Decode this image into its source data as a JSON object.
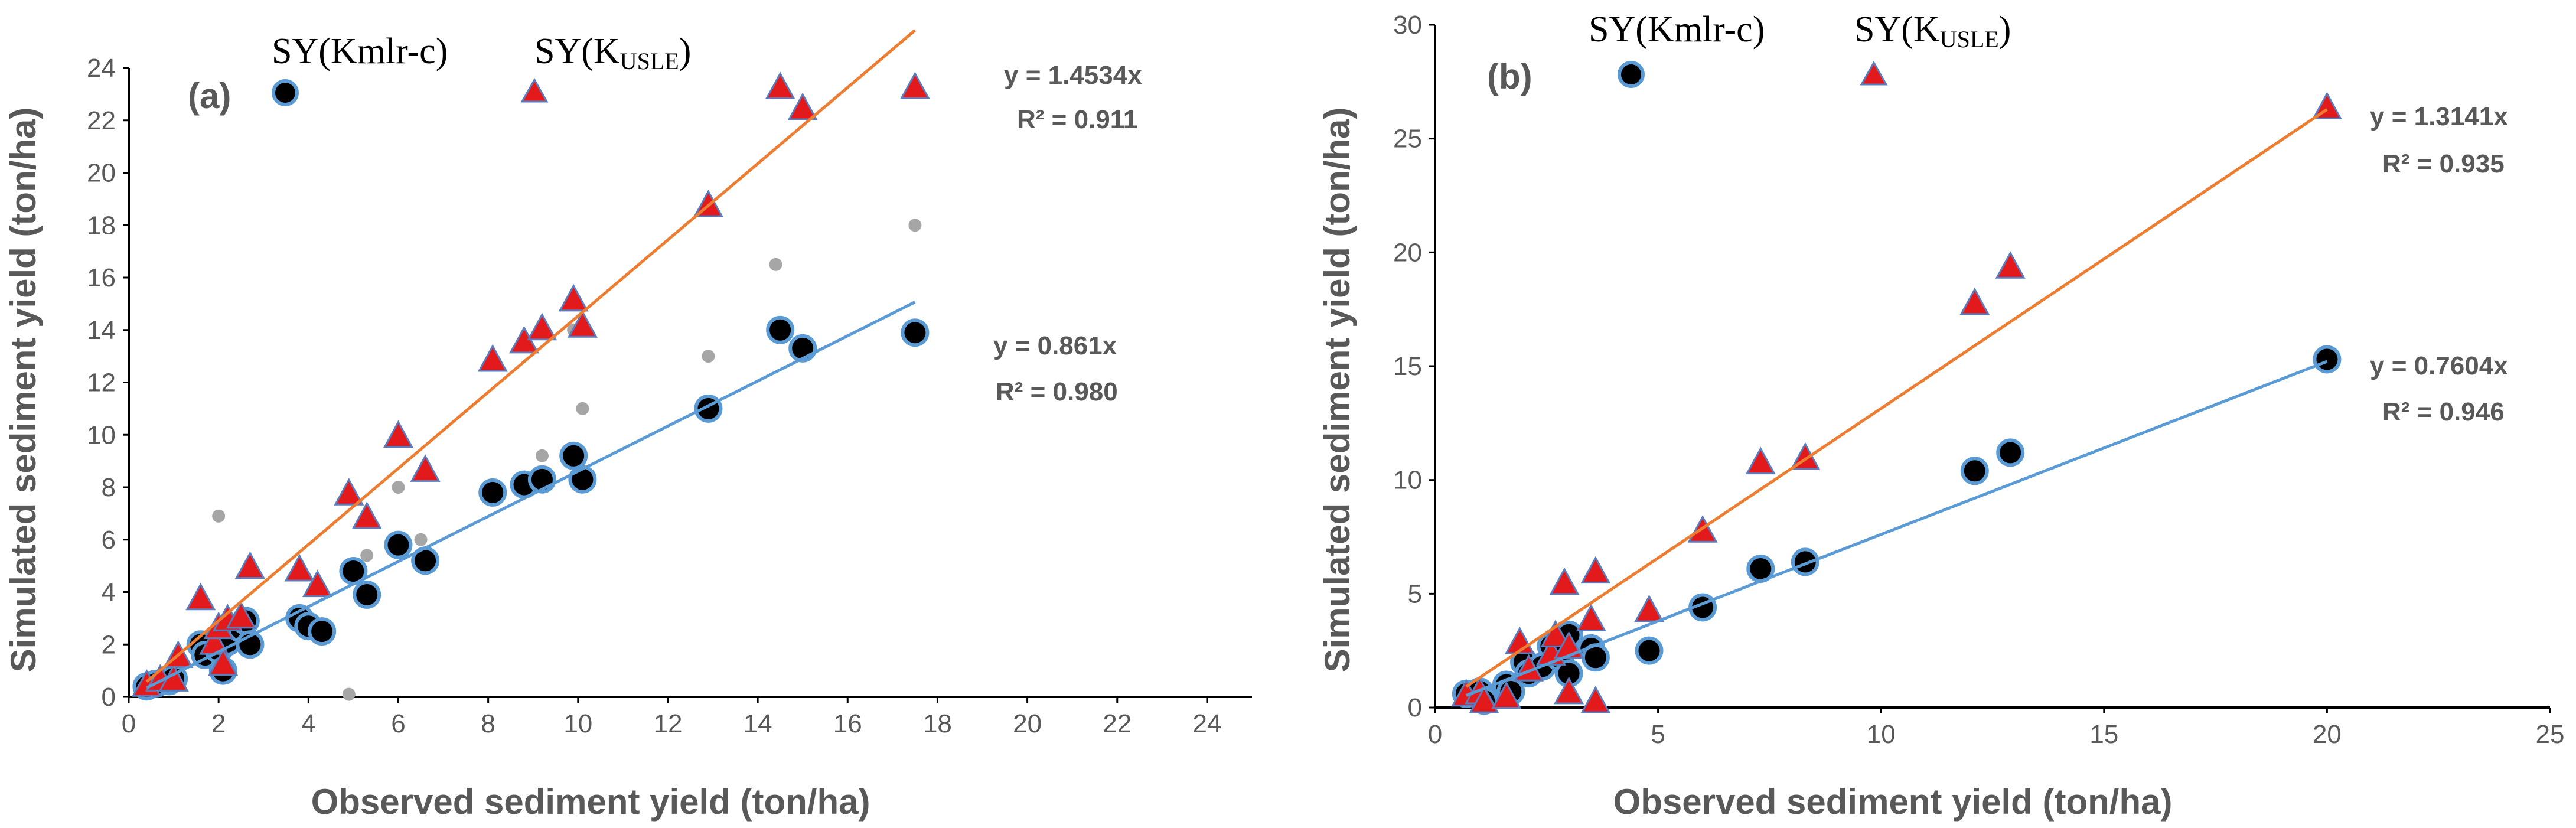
{
  "chart_data": [
    {
      "type": "scatter",
      "panel_label": "(a)",
      "xlabel": "Observed sediment yield (ton/ha)",
      "ylabel": "Simulated sediment yield (ton/ha)",
      "xlim": [
        0,
        25
      ],
      "ylim": [
        0,
        24
      ],
      "xticks": [
        0,
        2,
        4,
        6,
        8,
        10,
        12,
        14,
        16,
        18,
        20,
        22,
        24
      ],
      "yticks": [
        0,
        2,
        4,
        6,
        8,
        10,
        12,
        14,
        16,
        18,
        20,
        22,
        24
      ],
      "legend": {
        "kmlr_label": "SY(Kmlr-c)",
        "usle_main": "SY(K",
        "usle_sub": "USLE",
        "usle_close": ")"
      },
      "series": [
        {
          "name": "SY(Kmlr-c)",
          "marker": "circle",
          "fill": "#000000",
          "edge": "#5b9bd5",
          "trend_color": "#5b9bd5",
          "slope": 0.861,
          "trend_xmax": 17.5,
          "equation": "y = 0.861x",
          "r2": "R² = 0.980",
          "points": [
            [
              0.4,
              0.4
            ],
            [
              0.6,
              0.5
            ],
            [
              0.9,
              0.6
            ],
            [
              1.0,
              0.7
            ],
            [
              1.6,
              2.0
            ],
            [
              1.7,
              1.6
            ],
            [
              2.0,
              1.8
            ],
            [
              2.1,
              1.0
            ],
            [
              2.2,
              2.1
            ],
            [
              2.5,
              2.6
            ],
            [
              2.6,
              2.9
            ],
            [
              2.7,
              2.0
            ],
            [
              3.8,
              3.0
            ],
            [
              4.0,
              2.7
            ],
            [
              4.3,
              2.5
            ],
            [
              5.0,
              4.8
            ],
            [
              5.3,
              3.9
            ],
            [
              6.0,
              5.8
            ],
            [
              6.6,
              5.2
            ],
            [
              8.1,
              7.8
            ],
            [
              8.8,
              8.1
            ],
            [
              9.2,
              8.3
            ],
            [
              9.9,
              9.2
            ],
            [
              10.1,
              8.3
            ],
            [
              12.9,
              11.0
            ],
            [
              14.5,
              14.0
            ],
            [
              15.0,
              13.3
            ],
            [
              17.5,
              13.9
            ]
          ]
        },
        {
          "name": "SY(KUSLE)",
          "marker": "triangle",
          "fill": "#e31a1c",
          "edge": "#5b7dbd",
          "trend_color": "#ed7d31",
          "slope": 1.4534,
          "trend_xmax": 17.5,
          "equation": "y = 1.4534x",
          "r2": "R² = 0.911",
          "points": [
            [
              0.4,
              0.4
            ],
            [
              0.7,
              0.6
            ],
            [
              1.0,
              0.6
            ],
            [
              1.1,
              1.5
            ],
            [
              1.6,
              3.7
            ],
            [
              1.9,
              2.0
            ],
            [
              2.0,
              2.6
            ],
            [
              2.1,
              1.2
            ],
            [
              2.2,
              2.9
            ],
            [
              2.5,
              3.0
            ],
            [
              2.7,
              4.9
            ],
            [
              3.8,
              4.8
            ],
            [
              4.2,
              4.2
            ],
            [
              4.9,
              7.7
            ],
            [
              5.3,
              6.8
            ],
            [
              6.0,
              9.9
            ],
            [
              6.6,
              8.6
            ],
            [
              8.1,
              12.8
            ],
            [
              8.8,
              13.5
            ],
            [
              9.2,
              14.0
            ],
            [
              9.9,
              15.1
            ],
            [
              10.1,
              14.1
            ],
            [
              12.9,
              18.7
            ],
            [
              14.5,
              23.2
            ],
            [
              15.0,
              22.4
            ],
            [
              17.5,
              23.2
            ]
          ]
        },
        {
          "name": "secondary",
          "marker": "dot",
          "fill": "#a6a6a6",
          "points": [
            [
              2.0,
              6.9
            ],
            [
              4.9,
              0.1
            ],
            [
              6.0,
              8.0
            ],
            [
              6.5,
              6.0
            ],
            [
              8.1,
              8.0
            ],
            [
              9.2,
              9.2
            ],
            [
              10.1,
              11.0
            ],
            [
              12.9,
              13.0
            ],
            [
              14.4,
              16.5
            ],
            [
              17.5,
              18.0
            ],
            [
              3.7,
              3.0
            ],
            [
              5.3,
              5.4
            ],
            [
              9.9,
              14.0
            ]
          ]
        }
      ]
    },
    {
      "type": "scatter",
      "panel_label": "(b)",
      "xlabel": "Observed sediment yield (ton/ha)",
      "ylabel": "Simulated sediment yield (ton/ha)",
      "xlim": [
        0,
        25
      ],
      "ylim": [
        0,
        30
      ],
      "xticks": [
        0,
        5,
        10,
        15,
        20,
        25
      ],
      "yticks": [
        0,
        5,
        10,
        15,
        20,
        25,
        30
      ],
      "legend": {
        "kmlr_label": "SY(Kmlr-c)",
        "usle_main": "SY(K",
        "usle_sub": "USLE",
        "usle_close": ")"
      },
      "series": [
        {
          "name": "SY(Kmlr-c)",
          "marker": "circle",
          "fill": "#000000",
          "edge": "#5b9bd5",
          "trend_color": "#5b9bd5",
          "slope": 0.7604,
          "trend_xmax": 20.0,
          "equation": "y = 0.7604x",
          "r2": "R² = 0.946",
          "points": [
            [
              0.7,
              0.6
            ],
            [
              1.0,
              0.7
            ],
            [
              1.1,
              0.3
            ],
            [
              1.6,
              1.0
            ],
            [
              1.7,
              0.7
            ],
            [
              2.0,
              2.0
            ],
            [
              2.1,
              1.5
            ],
            [
              2.4,
              1.8
            ],
            [
              2.6,
              2.7
            ],
            [
              2.8,
              2.2
            ],
            [
              3.0,
              1.5
            ],
            [
              3.0,
              3.2
            ],
            [
              3.5,
              2.6
            ],
            [
              3.6,
              2.2
            ],
            [
              4.8,
              2.5
            ],
            [
              6.0,
              4.4
            ],
            [
              7.3,
              6.1
            ],
            [
              8.3,
              6.4
            ],
            [
              12.1,
              10.4
            ],
            [
              12.9,
              11.2
            ],
            [
              20.0,
              15.3
            ]
          ]
        },
        {
          "name": "SY(KUSLE)",
          "marker": "triangle",
          "fill": "#e31a1c",
          "edge": "#5b7dbd",
          "trend_color": "#ed7d31",
          "slope": 1.3141,
          "trend_xmax": 20.0,
          "equation": "y = 1.3141x",
          "r2": "R² = 0.935",
          "points": [
            [
              0.7,
              0.5
            ],
            [
              1.0,
              0.6
            ],
            [
              1.1,
              0.2
            ],
            [
              1.6,
              0.4
            ],
            [
              1.9,
              2.8
            ],
            [
              2.1,
              1.6
            ],
            [
              2.6,
              2.3
            ],
            [
              2.7,
              3.1
            ],
            [
              2.9,
              5.4
            ],
            [
              3.0,
              0.6
            ],
            [
              3.0,
              2.6
            ],
            [
              3.5,
              3.8
            ],
            [
              3.6,
              0.2
            ],
            [
              3.6,
              5.9
            ],
            [
              4.8,
              4.2
            ],
            [
              6.0,
              7.7
            ],
            [
              7.3,
              10.7
            ],
            [
              8.3,
              10.9
            ],
            [
              12.1,
              17.7
            ],
            [
              12.9,
              19.3
            ],
            [
              20.0,
              26.3
            ]
          ]
        }
      ]
    }
  ]
}
